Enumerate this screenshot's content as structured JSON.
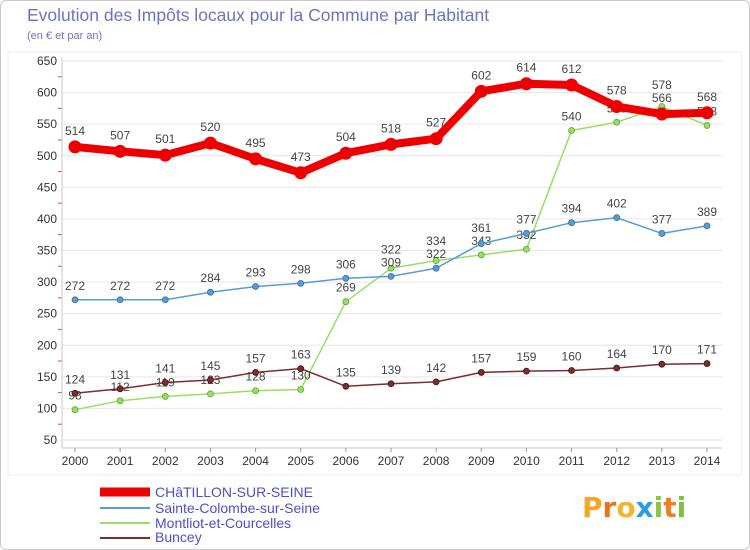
{
  "chart_data": {
    "type": "line",
    "title": "Evolution des Impôts locaux pour la Commune par Habitant",
    "subtitle": "(en € et par an)",
    "xlabel": "",
    "ylabel": "",
    "x": [
      "2000",
      "2001",
      "2002",
      "2003",
      "2004",
      "2005",
      "2006",
      "2007",
      "2008",
      "2009",
      "2010",
      "2011",
      "2012",
      "2013",
      "2014"
    ],
    "ylim": [
      50,
      650
    ],
    "yticks": [
      50,
      100,
      150,
      200,
      250,
      300,
      350,
      400,
      450,
      500,
      550,
      600,
      650
    ],
    "grid": true,
    "legend_position": "bottom-left",
    "series": [
      {
        "name": "CHâTILLON-SUR-SEINE",
        "color": "#ee0000",
        "values": [
          514,
          507,
          501,
          520,
          495,
          473,
          504,
          518,
          527,
          602,
          614,
          612,
          578,
          566,
          568
        ]
      },
      {
        "name": "Sainte-Colombe-sur-Seine",
        "color": "#5b9bd5",
        "values": [
          272,
          272,
          272,
          284,
          293,
          298,
          306,
          309,
          322,
          361,
          377,
          394,
          402,
          377,
          389
        ]
      },
      {
        "name": "Montliot-et-Courcelles",
        "color": "#99dd66",
        "values": [
          98,
          112,
          119,
          123,
          128,
          130,
          269,
          322,
          334,
          343,
          352,
          540,
          553,
          578,
          548
        ]
      },
      {
        "name": "Buncey",
        "color": "#7a2e2e",
        "values": [
          124,
          131,
          141,
          145,
          157,
          163,
          135,
          139,
          142,
          157,
          159,
          160,
          164,
          170,
          171
        ]
      }
    ]
  },
  "colors": {
    "title": "#6b74c4",
    "legend_text": "#4d4dcf",
    "grid": "#e6e6e6",
    "axis": "#c8c8c8",
    "minor_tick": "#e04040"
  },
  "logo": {
    "text": "Proxiti",
    "letter_colors": [
      "#f5a623",
      "#e8731a",
      "#f0b62c",
      "#2f9be0",
      "#8cc63f",
      "#f07f22",
      "#7cc242"
    ]
  }
}
